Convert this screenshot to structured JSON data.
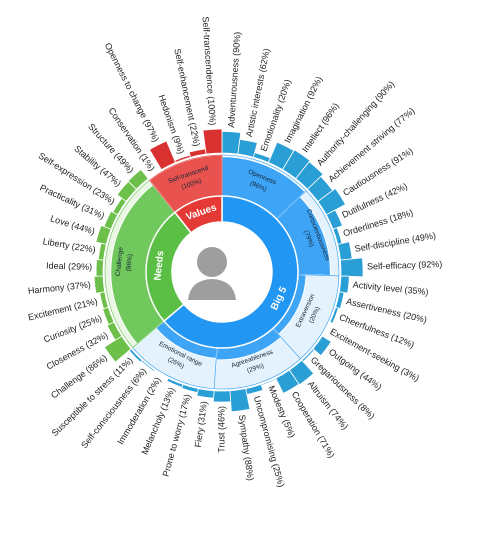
{
  "chart_data": {
    "type": "sunburst",
    "groups": [
      {
        "name": "Big 5",
        "color": "#2196f3",
        "light_color": "#e3f2fd",
        "bar_color": "#2a9fd6",
        "children": [
          {
            "name": "Openness",
            "value_label": "(96%)",
            "value": 96,
            "children": [
              {
                "label": "Adventurousness (90%)",
                "value": 90
              },
              {
                "label": "Artistic interests (62%)",
                "value": 62
              },
              {
                "label": "Emotionality (20%)",
                "value": 20
              },
              {
                "label": "Imagination (92%)",
                "value": 92
              },
              {
                "label": "Intellect (96%)",
                "value": 96
              },
              {
                "label": "Authority-challenging (90%)",
                "value": 90
              }
            ]
          },
          {
            "name": "Conscientiousness",
            "value_label": "(79%)",
            "value": 79,
            "children": [
              {
                "label": "Achievement striving (77%)",
                "value": 77
              },
              {
                "label": "Cautiousness (91%)",
                "value": 91
              },
              {
                "label": "Dutifulness (42%)",
                "value": 42
              },
              {
                "label": "Orderliness (18%)",
                "value": 18
              },
              {
                "label": "Self-discipline (49%)",
                "value": 49
              },
              {
                "label": "Self-efficacy (92%)",
                "value": 92
              }
            ]
          },
          {
            "name": "Extraversion",
            "value_label": "(20%)",
            "value": 20,
            "children": [
              {
                "label": "Activity level (35%)",
                "value": 35
              },
              {
                "label": "Assertiveness (20%)",
                "value": 20
              },
              {
                "label": "Cheerfulness (12%)",
                "value": 12
              },
              {
                "label": "Excitement-seeking (3%)",
                "value": 3
              },
              {
                "label": "Outgoing (44%)",
                "value": 44
              },
              {
                "label": "Gregariousness (8%)",
                "value": 8
              }
            ]
          },
          {
            "name": "Agreeableness",
            "value_label": "(29%)",
            "value": 29,
            "children": [
              {
                "label": "Altruism (74%)",
                "value": 74
              },
              {
                "label": "Cooperation (71%)",
                "value": 71
              },
              {
                "label": "Modesty (5%)",
                "value": 5
              },
              {
                "label": "Uncompromising (25%)",
                "value": 25
              },
              {
                "label": "Sympathy (88%)",
                "value": 88
              },
              {
                "label": "Trust (46%)",
                "value": 46
              }
            ]
          },
          {
            "name": "Emotional range",
            "value_label": "(26%)",
            "value": 26,
            "children": [
              {
                "label": "Fiery (31%)",
                "value": 31
              },
              {
                "label": "Prone to worry (17%)",
                "value": 17
              },
              {
                "label": "Melancholy (13%)",
                "value": 13
              },
              {
                "label": "Immoderation (2%)",
                "value": 2
              },
              {
                "label": "Self-consciousness (6%)",
                "value": 6
              },
              {
                "label": "Susceptible to stress (11%)",
                "value": 11
              }
            ]
          }
        ]
      },
      {
        "name": "Needs",
        "color": "#5cbf45",
        "light_color": "#eaf7e4",
        "bar_color": "#6cc04a",
        "children": [
          {
            "name": "Challenge",
            "value_label": "(86%)",
            "value": 86,
            "children": [
              {
                "label": "Challenge (86%)",
                "value": 86
              },
              {
                "label": "Closeness (32%)",
                "value": 32
              },
              {
                "label": "Curiosity (25%)",
                "value": 25
              },
              {
                "label": "Excitement (21%)",
                "value": 21
              },
              {
                "label": "Harmony (37%)",
                "value": 37
              },
              {
                "label": "Ideal (29%)",
                "value": 29
              },
              {
                "label": "Liberty (22%)",
                "value": 22
              },
              {
                "label": "Love (44%)",
                "value": 44
              },
              {
                "label": "Practicality (31%)",
                "value": 31
              },
              {
                "label": "Self-expression (23%)",
                "value": 23
              },
              {
                "label": "Stability (47%)",
                "value": 47
              },
              {
                "label": "Structure (49%)",
                "value": 49
              }
            ]
          }
        ]
      },
      {
        "name": "Values",
        "color": "#e53935",
        "light_color": "#fde3e2",
        "bar_color": "#d93030",
        "children": [
          {
            "name": "Self-transcend",
            "value_label": "(100%)",
            "value": 100,
            "children": [
              {
                "label": "Conservation (1%)",
                "value": 1
              },
              {
                "label": "Openness to change (97%)",
                "value": 97
              },
              {
                "label": "Hedonism (9%)",
                "value": 9
              },
              {
                "label": "Self-enhancement (22%)",
                "value": 22
              },
              {
                "label": "Self-transcendence (100%)",
                "value": 100
              }
            ]
          }
        ]
      }
    ]
  }
}
